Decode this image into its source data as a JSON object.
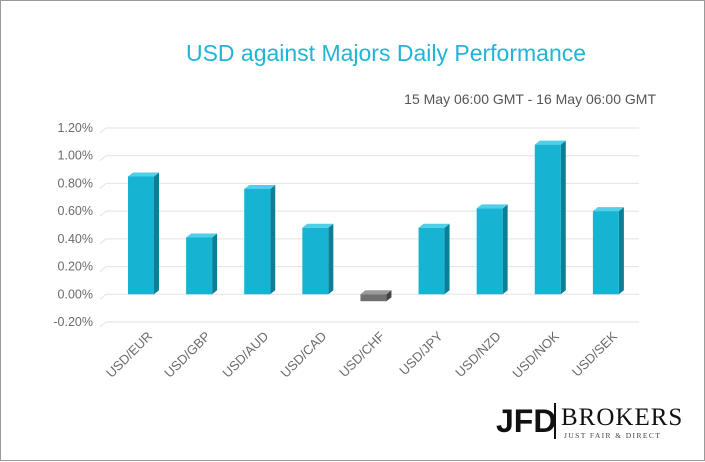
{
  "colors": {
    "positive_front": "#16b4d2",
    "positive_side": "#0c7f96",
    "positive_top": "#4fd0e8",
    "negative_front": "#6f6f6f",
    "negative_side": "#444444",
    "negative_top": "#9a9a9a",
    "grid": "#e3e3e3",
    "title": "#1fb5d6"
  },
  "chart_data": {
    "type": "bar",
    "title": "USD against Majors Daily Performance",
    "subtitle": "15 May 06:00 GMT - 16 May 06:00 GMT",
    "categories": [
      "USD/EUR",
      "USD/GBP",
      "USD/AUD",
      "USD/CAD",
      "USD/CHF",
      "USD/JPY",
      "USD/NZD",
      "USD/NOK",
      "USD/SEK"
    ],
    "values": [
      0.85,
      0.41,
      0.76,
      0.48,
      -0.05,
      0.48,
      0.62,
      1.08,
      0.6
    ],
    "value_unit": "%",
    "yticks": [
      "-0.20%",
      "0.00%",
      "0.20%",
      "0.40%",
      "0.60%",
      "0.80%",
      "1.00%",
      "1.20%"
    ],
    "ylim": [
      -0.2,
      1.2
    ],
    "grid": true,
    "legend": false,
    "style": "3d-column"
  },
  "logo": {
    "brand": "JFD",
    "brokers": "BROKERS",
    "tagline": "JUST FAIR & DIRECT"
  }
}
